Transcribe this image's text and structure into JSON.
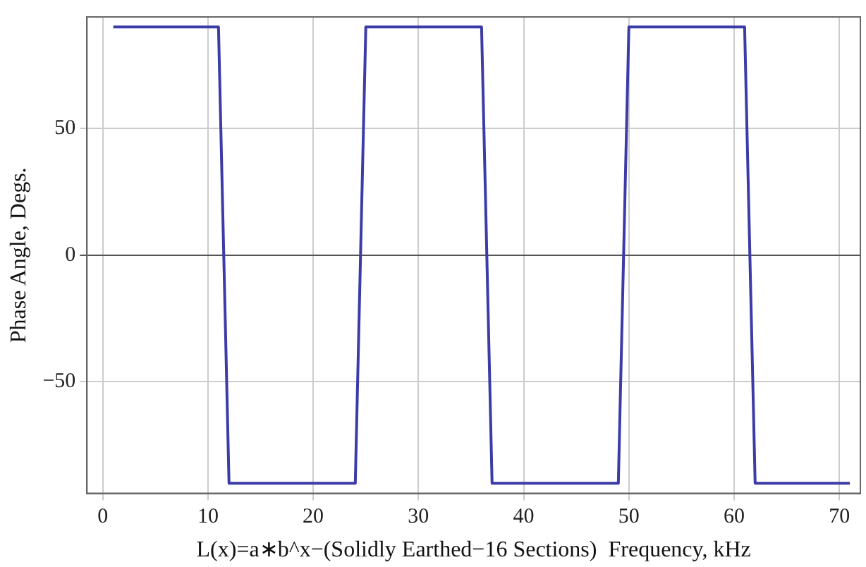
{
  "chart_data": {
    "type": "line",
    "xlabel": "L(x)=a∗b^x−(Solidly Earthed−16 Sections)  Frequency, kHz",
    "ylabel": "Phase Angle, Degs.",
    "series": [
      {
        "color": "#3c3ca8",
        "x": [
          1,
          11,
          12,
          24,
          25,
          36,
          37,
          49,
          50,
          61,
          62,
          71
        ],
        "values": [
          90,
          90,
          -90,
          -90,
          90,
          90,
          -90,
          -90,
          90,
          90,
          -90,
          -90
        ]
      }
    ],
    "xlim": [
      -1.5,
      72
    ],
    "ylim": [
      -94,
      94
    ],
    "xticks": [
      0,
      10,
      20,
      30,
      40,
      50,
      60,
      70
    ],
    "yticks": [
      {
        "value": -50,
        "label": "−50"
      },
      0,
      50
    ],
    "grid": true,
    "legend": false,
    "marker": "none",
    "line_style": "solid"
  }
}
